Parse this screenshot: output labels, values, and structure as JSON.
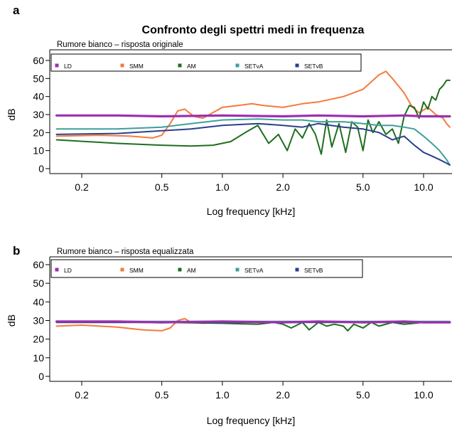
{
  "figure": {
    "title": "Confronto degli spettri medi in frequenza"
  },
  "colors": {
    "LD": "#9b30b0",
    "SMM": "#f47a3e",
    "AM": "#1f6e1f",
    "SETvA": "#3f9f9c",
    "SETvB": "#2b3f8f"
  },
  "chart_data": [
    {
      "panel_label": "a",
      "type": "line",
      "subtitle": "Rumore bianco – risposta originale",
      "xlabel": "Log frequency [kHz]",
      "ylabel": "dB",
      "x_scale": "log",
      "xlim": [
        0.15,
        13.5
      ],
      "ylim": [
        0,
        60
      ],
      "x_ticks": [
        0.2,
        0.5,
        1.0,
        2.0,
        5.0,
        10.0
      ],
      "x_tick_labels": [
        "0.2",
        "0.5",
        "1.0",
        "2.0",
        "5.0",
        "10.0"
      ],
      "y_ticks": [
        0,
        10,
        20,
        30,
        40,
        50,
        60
      ],
      "y_tick_labels": [
        "0",
        "10",
        "20",
        "30",
        "40",
        "50",
        "60"
      ],
      "grid": false,
      "legend_position": "top-left",
      "series": [
        {
          "name": "LD",
          "x": [
            0.15,
            0.3,
            0.5,
            1.0,
            2.0,
            3.0,
            5.0,
            8.0,
            10.0,
            12.0,
            13.5
          ],
          "y": [
            29.5,
            29.5,
            29,
            29.5,
            29,
            29.5,
            29,
            29.5,
            29,
            29,
            29
          ]
        },
        {
          "name": "SMM",
          "x": [
            0.15,
            0.25,
            0.35,
            0.45,
            0.5,
            0.55,
            0.6,
            0.65,
            0.72,
            0.8,
            1.0,
            1.2,
            1.4,
            1.6,
            2.0,
            2.5,
            3.0,
            4.0,
            5.0,
            6.0,
            6.5,
            7.0,
            8.0,
            8.8,
            9.5,
            10.5,
            11.5,
            12.5,
            13.0,
            13.5
          ],
          "y": [
            18,
            18.5,
            18,
            17,
            18.5,
            25,
            32,
            33,
            29,
            28,
            34,
            35,
            36,
            35,
            34,
            36,
            37,
            40,
            44,
            52,
            54,
            50,
            42,
            34,
            31,
            34,
            30,
            28,
            25,
            23
          ]
        },
        {
          "name": "AM",
          "x": [
            0.15,
            0.3,
            0.5,
            0.7,
            0.9,
            1.1,
            1.3,
            1.5,
            1.7,
            1.9,
            2.1,
            2.3,
            2.5,
            2.7,
            2.9,
            3.1,
            3.3,
            3.5,
            3.8,
            4.1,
            4.4,
            4.7,
            5.0,
            5.3,
            5.6,
            6.0,
            6.5,
            7.0,
            7.5,
            8.0,
            8.5,
            9.0,
            9.5,
            10.0,
            10.5,
            11.0,
            11.5,
            12.0,
            12.5,
            13.0,
            13.5
          ],
          "y": [
            16,
            14,
            13,
            12.5,
            13,
            15,
            20,
            24,
            14,
            19,
            10,
            22,
            17,
            25,
            19,
            8,
            27,
            12,
            25,
            9,
            26,
            23,
            10,
            27,
            20,
            26,
            19,
            22,
            14,
            29,
            35,
            34,
            28,
            37,
            33,
            40,
            38,
            44,
            46,
            49,
            49
          ]
        },
        {
          "name": "SETvA",
          "x": [
            0.15,
            0.3,
            0.5,
            0.7,
            1.0,
            1.5,
            2.0,
            2.5,
            3.0,
            4.0,
            5.0,
            6.0,
            7.0,
            8.0,
            9.0,
            10.0,
            11.0,
            12.0,
            13.0,
            13.5
          ],
          "y": [
            22,
            22,
            23,
            25,
            27,
            27.5,
            27,
            27,
            26,
            26,
            25,
            24,
            24,
            23,
            22,
            18,
            14,
            10,
            5,
            2
          ]
        },
        {
          "name": "SETvB",
          "x": [
            0.15,
            0.3,
            0.5,
            0.7,
            1.0,
            1.5,
            2.0,
            2.5,
            3.0,
            4.0,
            5.0,
            6.0,
            7.0,
            8.0,
            9.0,
            10.0,
            11.0,
            12.0,
            13.0,
            13.5
          ],
          "y": [
            19,
            19.5,
            21,
            22,
            24,
            25,
            24,
            23,
            25,
            23,
            22,
            20,
            16,
            18,
            13,
            9,
            7,
            5,
            3,
            2
          ]
        }
      ]
    },
    {
      "panel_label": "b",
      "type": "line",
      "subtitle": "Rumore bianco – risposta equalizzata",
      "xlabel": "Log frequency [kHz]",
      "ylabel": "dB",
      "x_scale": "log",
      "xlim": [
        0.15,
        13.5
      ],
      "ylim": [
        0,
        60
      ],
      "x_ticks": [
        0.2,
        0.5,
        1.0,
        2.0,
        5.0,
        10.0
      ],
      "x_tick_labels": [
        "0.2",
        "0.5",
        "1.0",
        "2.0",
        "5.0",
        "10.0"
      ],
      "y_ticks": [
        0,
        10,
        20,
        30,
        40,
        50,
        60
      ],
      "y_tick_labels": [
        "0",
        "10",
        "20",
        "30",
        "40",
        "50",
        "60"
      ],
      "grid": false,
      "legend_position": "top-left",
      "series": [
        {
          "name": "LD",
          "x": [
            0.15,
            0.3,
            0.5,
            1.0,
            2.0,
            3.0,
            5.0,
            8.0,
            10.0,
            13.5
          ],
          "y": [
            29.5,
            29.5,
            29,
            29.5,
            29,
            29.5,
            29,
            29.5,
            29,
            29
          ]
        },
        {
          "name": "SMM",
          "x": [
            0.15,
            0.2,
            0.3,
            0.4,
            0.5,
            0.55,
            0.6,
            0.65,
            0.7,
            0.8,
            1.0,
            1.5,
            2.0,
            3.0,
            5.0,
            10.0,
            13.5
          ],
          "y": [
            27,
            27.5,
            26.5,
            25,
            24.5,
            26,
            30,
            31,
            29,
            28.5,
            29,
            29,
            29,
            29,
            29,
            29,
            29
          ]
        },
        {
          "name": "AM",
          "x": [
            0.15,
            0.5,
            1.0,
            1.5,
            1.8,
            2.0,
            2.2,
            2.5,
            2.7,
            3.0,
            3.3,
            3.6,
            4.0,
            4.2,
            4.5,
            5.0,
            5.5,
            6.0,
            7.0,
            8.0,
            10.0,
            13.5
          ],
          "y": [
            29,
            29,
            28.5,
            28,
            29,
            28,
            26,
            29,
            25,
            29,
            27,
            28,
            27,
            24.5,
            28,
            26,
            29,
            27,
            29,
            28,
            29,
            29
          ]
        },
        {
          "name": "SETvA",
          "x": [
            0.15,
            0.5,
            1.0,
            2.0,
            5.0,
            10.0,
            13.5
          ],
          "y": [
            29.5,
            29.5,
            29.5,
            29.5,
            29.5,
            29.5,
            29.5
          ]
        },
        {
          "name": "SETvB",
          "x": [
            0.15,
            0.5,
            1.0,
            2.0,
            5.0,
            10.0,
            13.5
          ],
          "y": [
            29,
            29,
            29,
            29,
            29,
            29,
            29
          ]
        }
      ]
    }
  ]
}
